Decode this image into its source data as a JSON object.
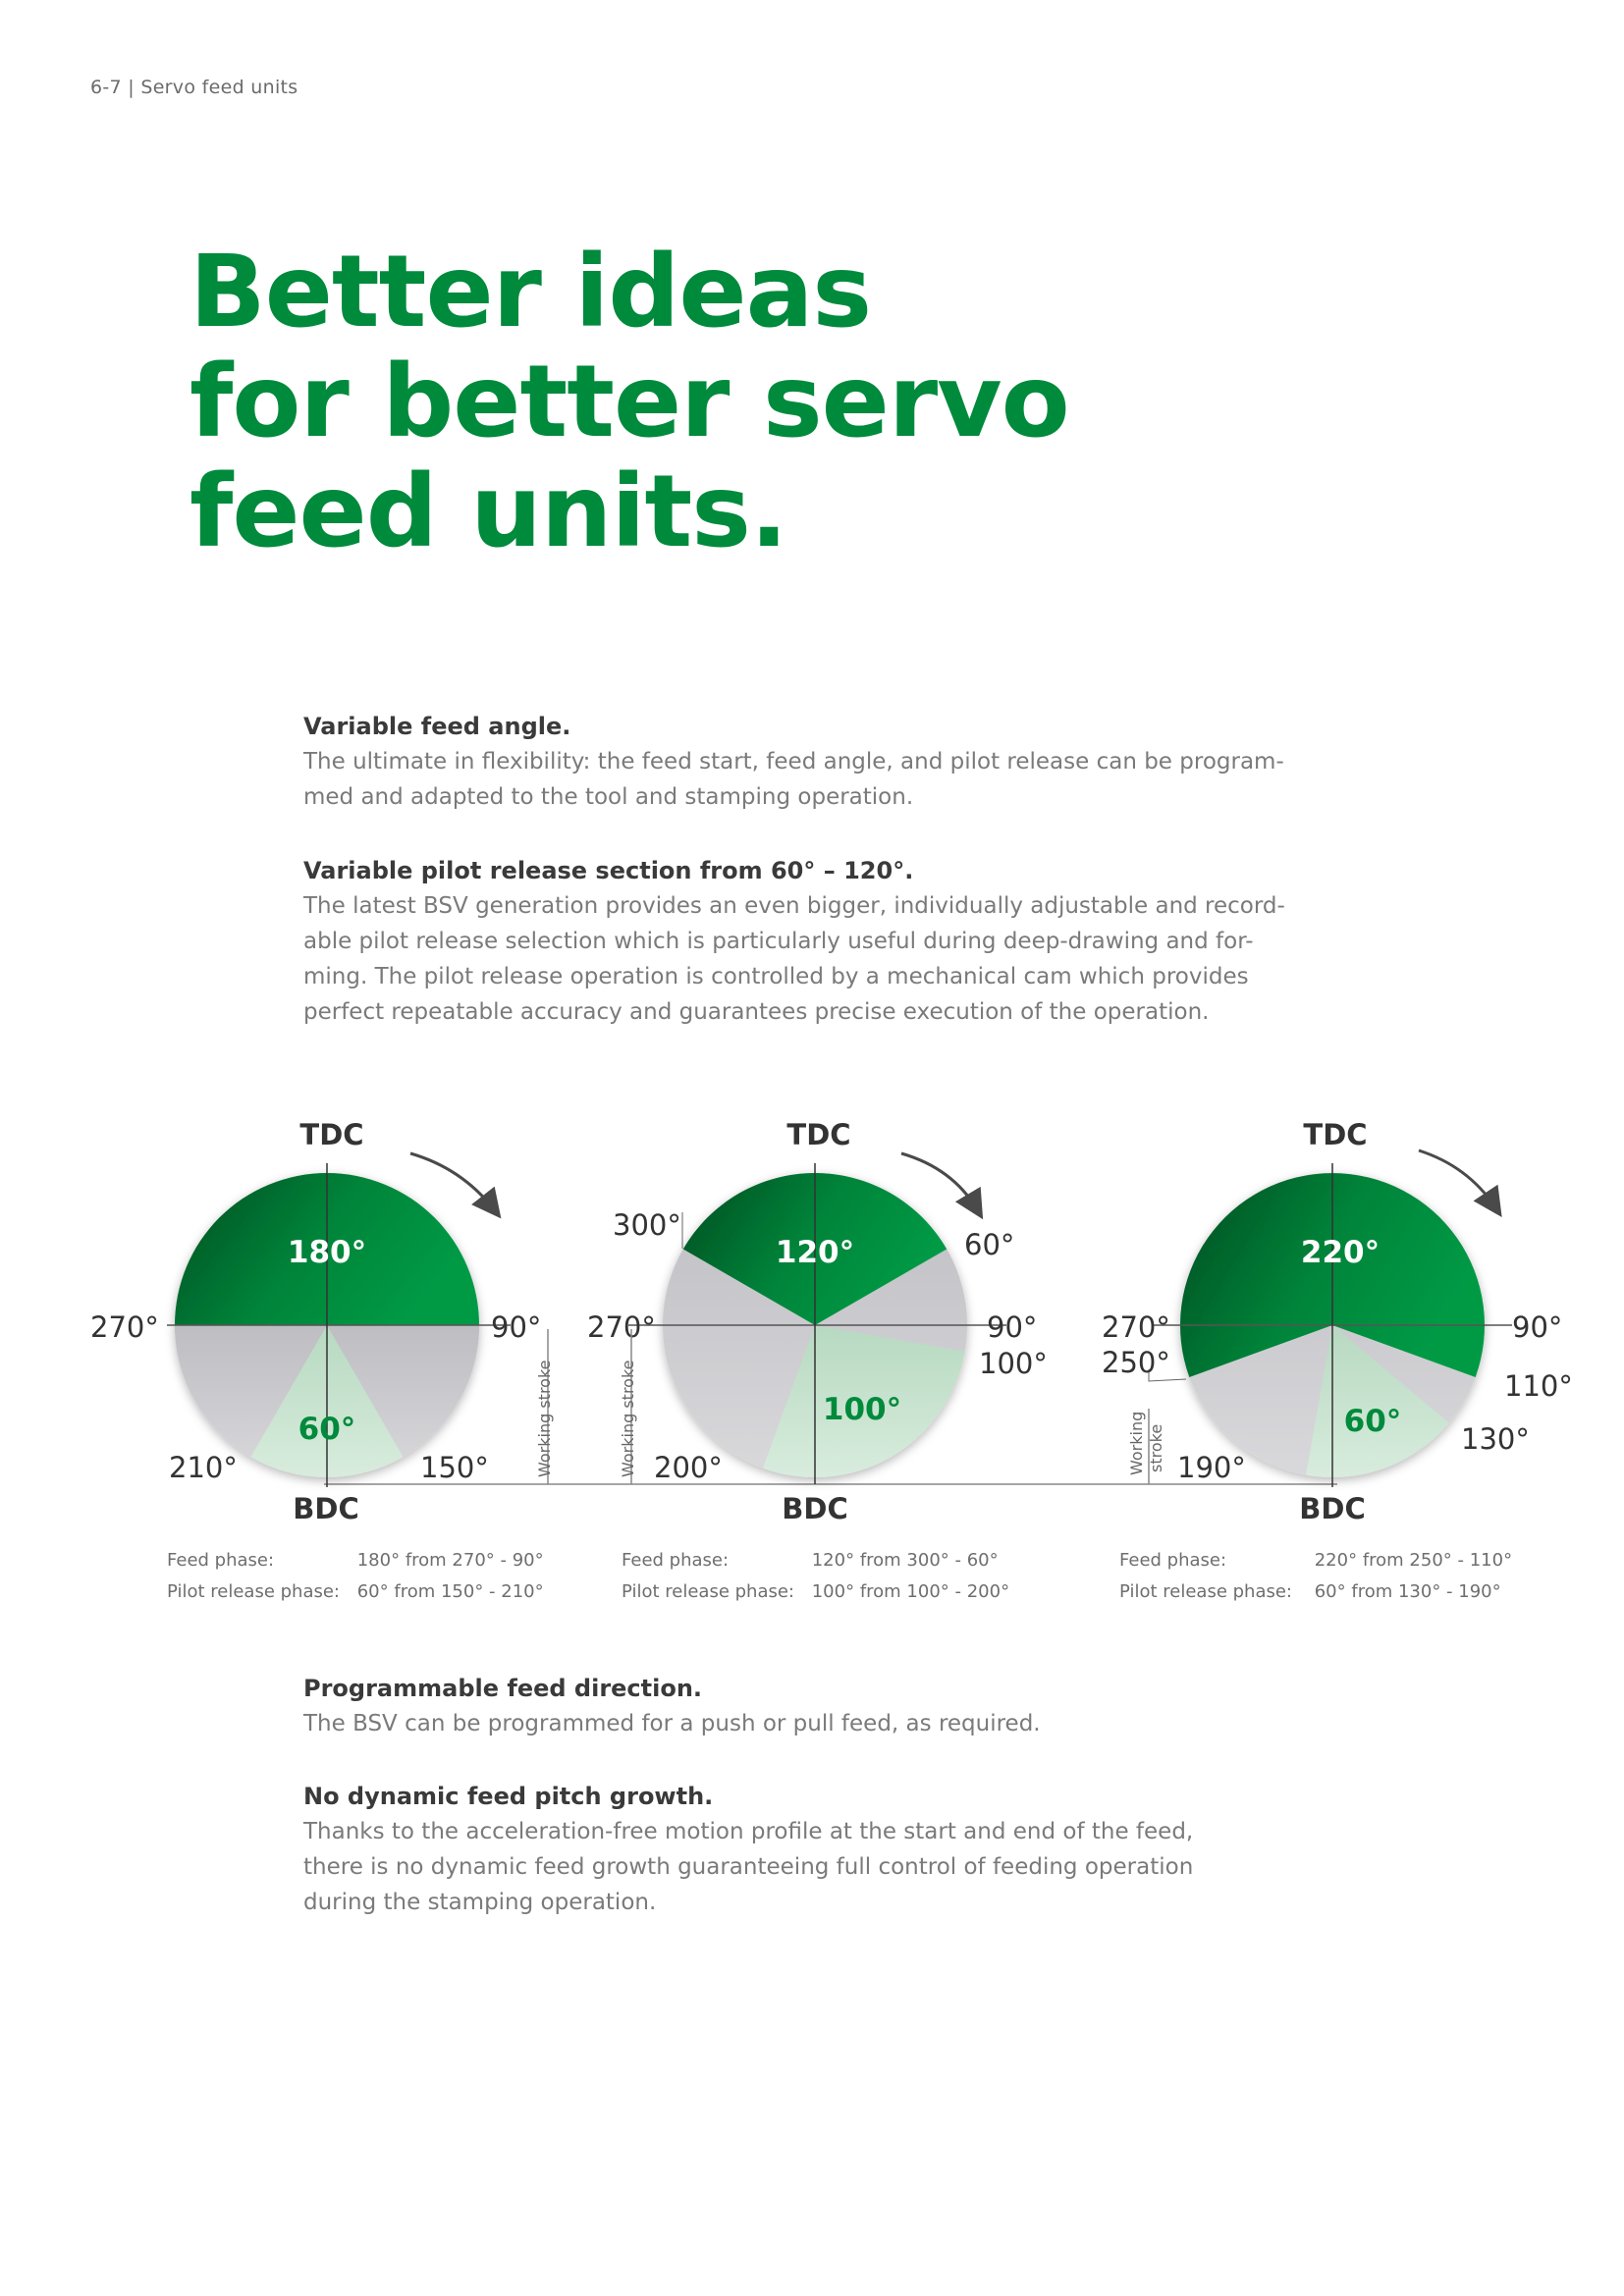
{
  "header": {
    "page_number": "6-7",
    "section": "Servo feed units"
  },
  "headline": {
    "line1": "Better ideas",
    "line2": "for better servo",
    "line3": "feed units."
  },
  "sections_top": [
    {
      "title": "Variable feed angle.",
      "lines": [
        "The ultimate in flexibility: the feed start, feed angle, and pilot release can be program-",
        "med and adapted to the tool and stamping operation."
      ]
    },
    {
      "title": "Variable pilot release section from 60° – 120°.",
      "lines": [
        "The latest BSV generation provides an even bigger, individually adjustable and record-",
        "able pilot release selection which is particularly useful during deep-drawing and for-",
        "ming. The pilot release operation is controlled by a mechanical cam which provides",
        "perfect repeatable accuracy and guarantees precise execution of the operation."
      ]
    }
  ],
  "sections_bottom": [
    {
      "title": "Programmable feed direction.",
      "lines": [
        "The BSV can be programmed for a push or pull feed, as required."
      ]
    },
    {
      "title": "No dynamic feed pitch growth.",
      "lines": [
        "Thanks to the acceleration-free motion profile at the start and end of the feed,",
        "there is no dynamic feed growth guaranteeing full control of feeding operation",
        "during the stamping operation."
      ]
    }
  ],
  "colors": {
    "green": "#008a3c",
    "dark_green": "#005a25",
    "light_green": "#c7e2cf",
    "gray": "#c9c9cc",
    "text_gray": "#7a7a7a"
  },
  "diagrams": [
    {
      "tdc": "TDC",
      "bdc": "BDC",
      "feed_label": "180°",
      "pilot_label": "60°",
      "feed_from": 270,
      "feed_to": 90,
      "pilot_from": 150,
      "pilot_to": 210,
      "angle_labels": [
        "270°",
        "90°",
        "150°",
        "210°"
      ],
      "working_stroke": "Working stroke",
      "legend": {
        "feed_label": "Feed phase:",
        "feed_value": "180° from 270° - 90°",
        "pilot_label": "Pilot release phase:",
        "pilot_value": "60° from 150° - 210°"
      }
    },
    {
      "tdc": "TDC",
      "bdc": "BDC",
      "feed_label": "120°",
      "pilot_label": "100°",
      "feed_from": 300,
      "feed_to": 60,
      "pilot_from": 100,
      "pilot_to": 200,
      "angle_labels": [
        "300°",
        "60°",
        "270°",
        "90°",
        "100°",
        "200°"
      ],
      "working_stroke": "Working stroke",
      "legend": {
        "feed_label": "Feed phase:",
        "feed_value": "120° from 300° - 60°",
        "pilot_label": "Pilot release phase:",
        "pilot_value": "100° from 100° - 200°"
      }
    },
    {
      "tdc": "TDC",
      "bdc": "BDC",
      "feed_label": "220°",
      "pilot_label": "60°",
      "feed_from": 250,
      "feed_to": 110,
      "pilot_from": 130,
      "pilot_to": 190,
      "angle_labels": [
        "270°",
        "250°",
        "90°",
        "110°",
        "130°",
        "190°"
      ],
      "working_stroke_line1": "Working",
      "working_stroke_line2": "stroke",
      "legend": {
        "feed_label": "Feed phase:",
        "feed_value": "220° from 250° - 110°",
        "pilot_label": "Pilot release phase:",
        "pilot_value": "60° from 130° - 190°"
      }
    }
  ]
}
